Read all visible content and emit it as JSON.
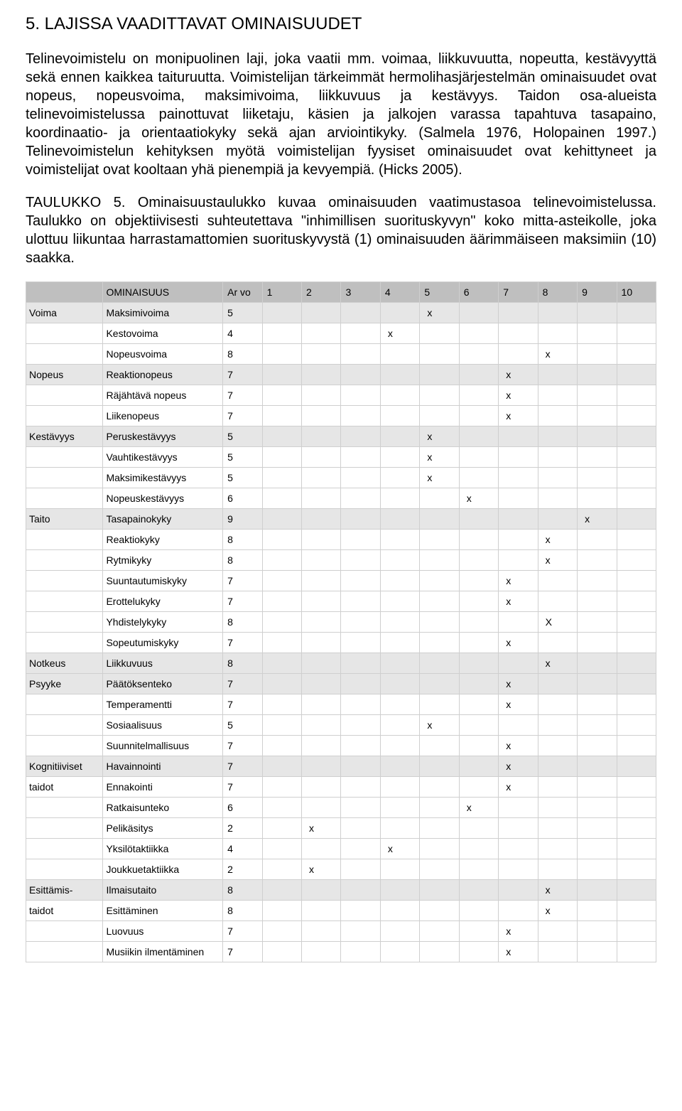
{
  "heading": "5. LAJISSA VAADITTAVAT OMINAISUUDET",
  "para1": "Telinevoimistelu on monipuolinen laji, joka vaatii mm. voimaa, liikkuvuutta, nopeutta, kestävyyttä sekä ennen kaikkea taituruutta. Voimistelijan tärkeimmät hermolihasjärjestelmän ominaisuudet ovat nopeus, nopeusvoima, maksimivoima, liikkuvuus ja kestävyys. Taidon osa-alueista telinevoimistelussa painottuvat liiketaju, käsien ja jalkojen varassa tapahtuva tasapaino, koordinaatio- ja orientaatiokyky sekä ajan arviointikyky. (Salmela 1976, Holopainen 1997.) Telinevoimistelun kehityksen myötä voimistelijan fyysiset ominaisuudet ovat kehittyneet ja voimistelijat ovat kooltaan yhä pienempiä ja kevyempiä. (Hicks 2005).",
  "para2": "TAULUKKO 5. Ominaisuustaulukko kuvaa ominaisuuden vaatimustasoa telinevoimistelussa. Taulukko on objektiivisesti suhteutettava \"inhimillisen suorituskyvyn\" koko mitta-asteikolle, joka ulottuu liikuntaa harrastamattomien suorituskyvystä (1) ominaisuuden äärimmäiseen maksimiin (10) saakka.",
  "tableHeader": {
    "c1": "",
    "c2": "OMINAISUUS",
    "c3": "Ar vo",
    "nums": [
      "1",
      "2",
      "3",
      "4",
      "5",
      "6",
      "7",
      "8",
      "9",
      "10"
    ]
  },
  "groups": [
    {
      "cat": "Voima",
      "rows": [
        {
          "prop": "Maksimivoima",
          "val": "5",
          "col": 5,
          "mark": "x"
        },
        {
          "prop": "Kestovoima",
          "val": "4",
          "col": 4,
          "mark": "x"
        },
        {
          "prop": "Nopeusvoima",
          "val": "8",
          "col": 8,
          "mark": "x"
        }
      ]
    },
    {
      "cat": "Nopeus",
      "rows": [
        {
          "prop": "Reaktionopeus",
          "val": "7",
          "col": 7,
          "mark": "x"
        },
        {
          "prop": "Räjähtävä nopeus",
          "val": "7",
          "col": 7,
          "mark": "x"
        },
        {
          "prop": "Liikenopeus",
          "val": "7",
          "col": 7,
          "mark": "x"
        }
      ]
    },
    {
      "cat": "Kestävyys",
      "rows": [
        {
          "prop": "Peruskestävyys",
          "val": "5",
          "col": 5,
          "mark": "x"
        },
        {
          "prop": "Vauhtikestävyys",
          "val": "5",
          "col": 5,
          "mark": "x"
        },
        {
          "prop": "Maksimikestävyys",
          "val": "5",
          "col": 5,
          "mark": "x"
        },
        {
          "prop": "Nopeuskestävyys",
          "val": "6",
          "col": 6,
          "mark": "x"
        }
      ]
    },
    {
      "cat": "Taito",
      "rows": [
        {
          "prop": "Tasapainokyky",
          "val": "9",
          "col": 9,
          "mark": "x"
        },
        {
          "prop": "Reaktiokyky",
          "val": "8",
          "col": 8,
          "mark": "x"
        },
        {
          "prop": "Rytmikyky",
          "val": "8",
          "col": 8,
          "mark": "x"
        },
        {
          "prop": "Suuntautumiskyky",
          "val": "7",
          "col": 7,
          "mark": "x"
        },
        {
          "prop": "Erottelukyky",
          "val": "7",
          "col": 7,
          "mark": "x"
        },
        {
          "prop": "Yhdistelykyky",
          "val": "8",
          "col": 8,
          "mark": "X"
        },
        {
          "prop": "Sopeutumiskyky",
          "val": "7",
          "col": 7,
          "mark": "x"
        }
      ]
    },
    {
      "cat": "Notkeus",
      "rows": [
        {
          "prop": "Liikkuvuus",
          "val": "8",
          "col": 8,
          "mark": "x"
        }
      ]
    },
    {
      "cat": "Psyyke",
      "rows": [
        {
          "prop": "Päätöksenteko",
          "val": "7",
          "col": 7,
          "mark": "x"
        },
        {
          "prop": "Temperamentti",
          "val": "7",
          "col": 7,
          "mark": "x"
        },
        {
          "prop": "Sosiaalisuus",
          "val": "5",
          "col": 5,
          "mark": "x"
        },
        {
          "prop": "Suunnitelmallisuus",
          "val": "7",
          "col": 7,
          "mark": "x"
        }
      ]
    },
    {
      "cat": "Kognitiiviset",
      "cat2": "taidot",
      "rows": [
        {
          "prop": "Havainnointi",
          "val": "7",
          "col": 7,
          "mark": "x"
        },
        {
          "prop": "Ennakointi",
          "val": "7",
          "col": 7,
          "mark": "x"
        },
        {
          "prop": "Ratkaisunteko",
          "val": "6",
          "col": 6,
          "mark": "x"
        },
        {
          "prop": "Pelikäsitys",
          "val": "2",
          "col": 2,
          "mark": "x"
        },
        {
          "prop": "Yksilötaktiikka",
          "val": "4",
          "col": 4,
          "mark": "x"
        },
        {
          "prop": "Joukkuetaktiikka",
          "val": "2",
          "col": 2,
          "mark": "x"
        }
      ]
    },
    {
      "cat": "Esittämis-",
      "cat2": "taidot",
      "rows": [
        {
          "prop": "Ilmaisutaito",
          "val": "8",
          "col": 8,
          "mark": "x"
        },
        {
          "prop": "Esittäminen",
          "val": "8",
          "col": 8,
          "mark": "x"
        },
        {
          "prop": "Luovuus",
          "val": "7",
          "col": 7,
          "mark": "x"
        },
        {
          "prop": "Musiikin ilmentäminen",
          "val": "7",
          "col": 7,
          "mark": "x"
        }
      ]
    }
  ],
  "style": {
    "headerBg": "#bfbfbf",
    "shadeBg": "#e6e6e6",
    "whiteBg": "#ffffff",
    "border": "#cfcfcf",
    "textColor": "#000000",
    "bodyFontSize": 20,
    "tableFontSize": 14
  }
}
